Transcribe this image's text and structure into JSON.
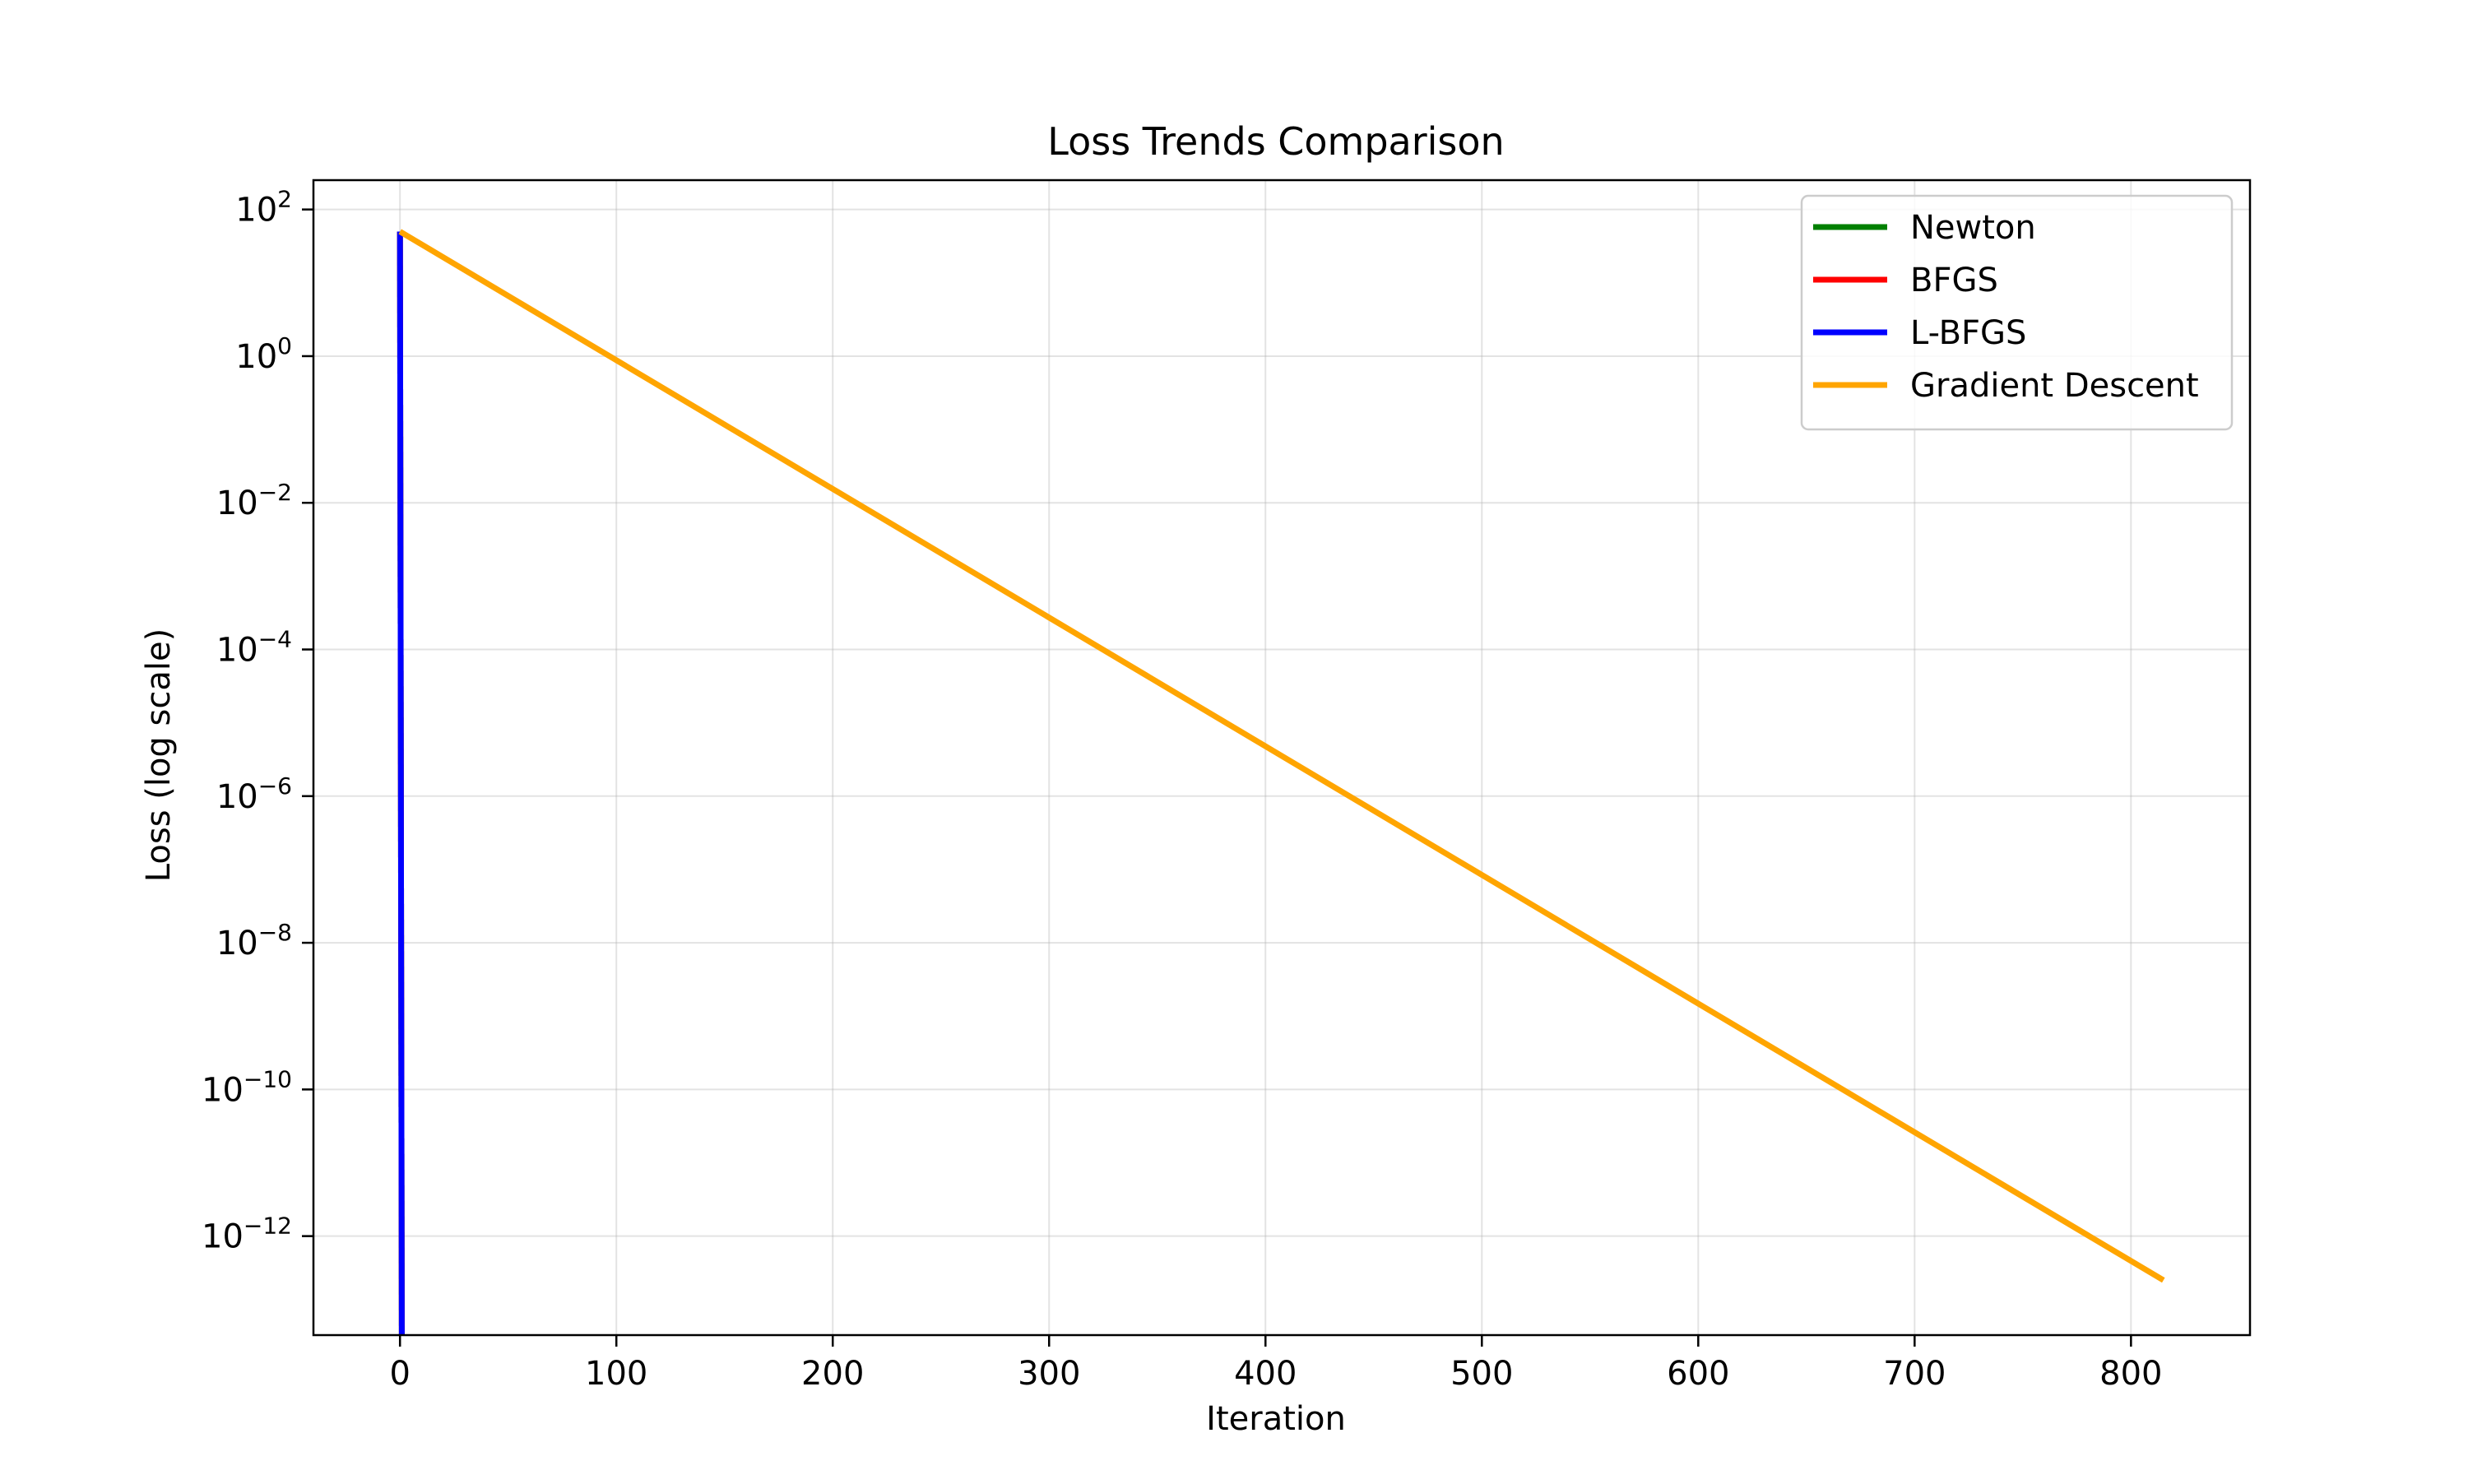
{
  "chart_data": {
    "type": "line",
    "title": "Loss Trends Comparison",
    "xlabel": "Iteration",
    "ylabel": "Loss (log scale)",
    "yscale": "log",
    "xlim": [
      -40,
      855
    ],
    "ylim_exponent": [
      -13.35,
      2.4
    ],
    "x_ticks": [
      0,
      100,
      200,
      300,
      400,
      500,
      600,
      700,
      800
    ],
    "y_ticks": [
      {
        "base": "10",
        "exp": "2",
        "value": 2
      },
      {
        "base": "10",
        "exp": "0",
        "value": 0
      },
      {
        "base": "10",
        "exp": "−2",
        "value": -2
      },
      {
        "base": "10",
        "exp": "−4",
        "value": -4
      },
      {
        "base": "10",
        "exp": "−6",
        "value": -6
      },
      {
        "base": "10",
        "exp": "−8",
        "value": -8
      },
      {
        "base": "10",
        "exp": "−10",
        "value": -10
      },
      {
        "base": "10",
        "exp": "−12",
        "value": -12
      }
    ],
    "grid": true,
    "legend_position": "top-right",
    "series": [
      {
        "name": "Newton",
        "color": "#008000",
        "x": [
          0,
          1
        ],
        "y": [
          50,
          1e-16
        ]
      },
      {
        "name": "BFGS",
        "color": "#ff0000",
        "x": [
          0,
          1
        ],
        "y": [
          50,
          1e-16
        ]
      },
      {
        "name": "L-BFGS",
        "color": "#0000ff",
        "x": [
          0,
          1
        ],
        "y": [
          50,
          1e-16
        ]
      },
      {
        "name": "Gradient Descent",
        "color": "#ffa500",
        "x": [
          0,
          815
        ],
        "y": [
          50,
          2.5e-13
        ]
      }
    ]
  }
}
